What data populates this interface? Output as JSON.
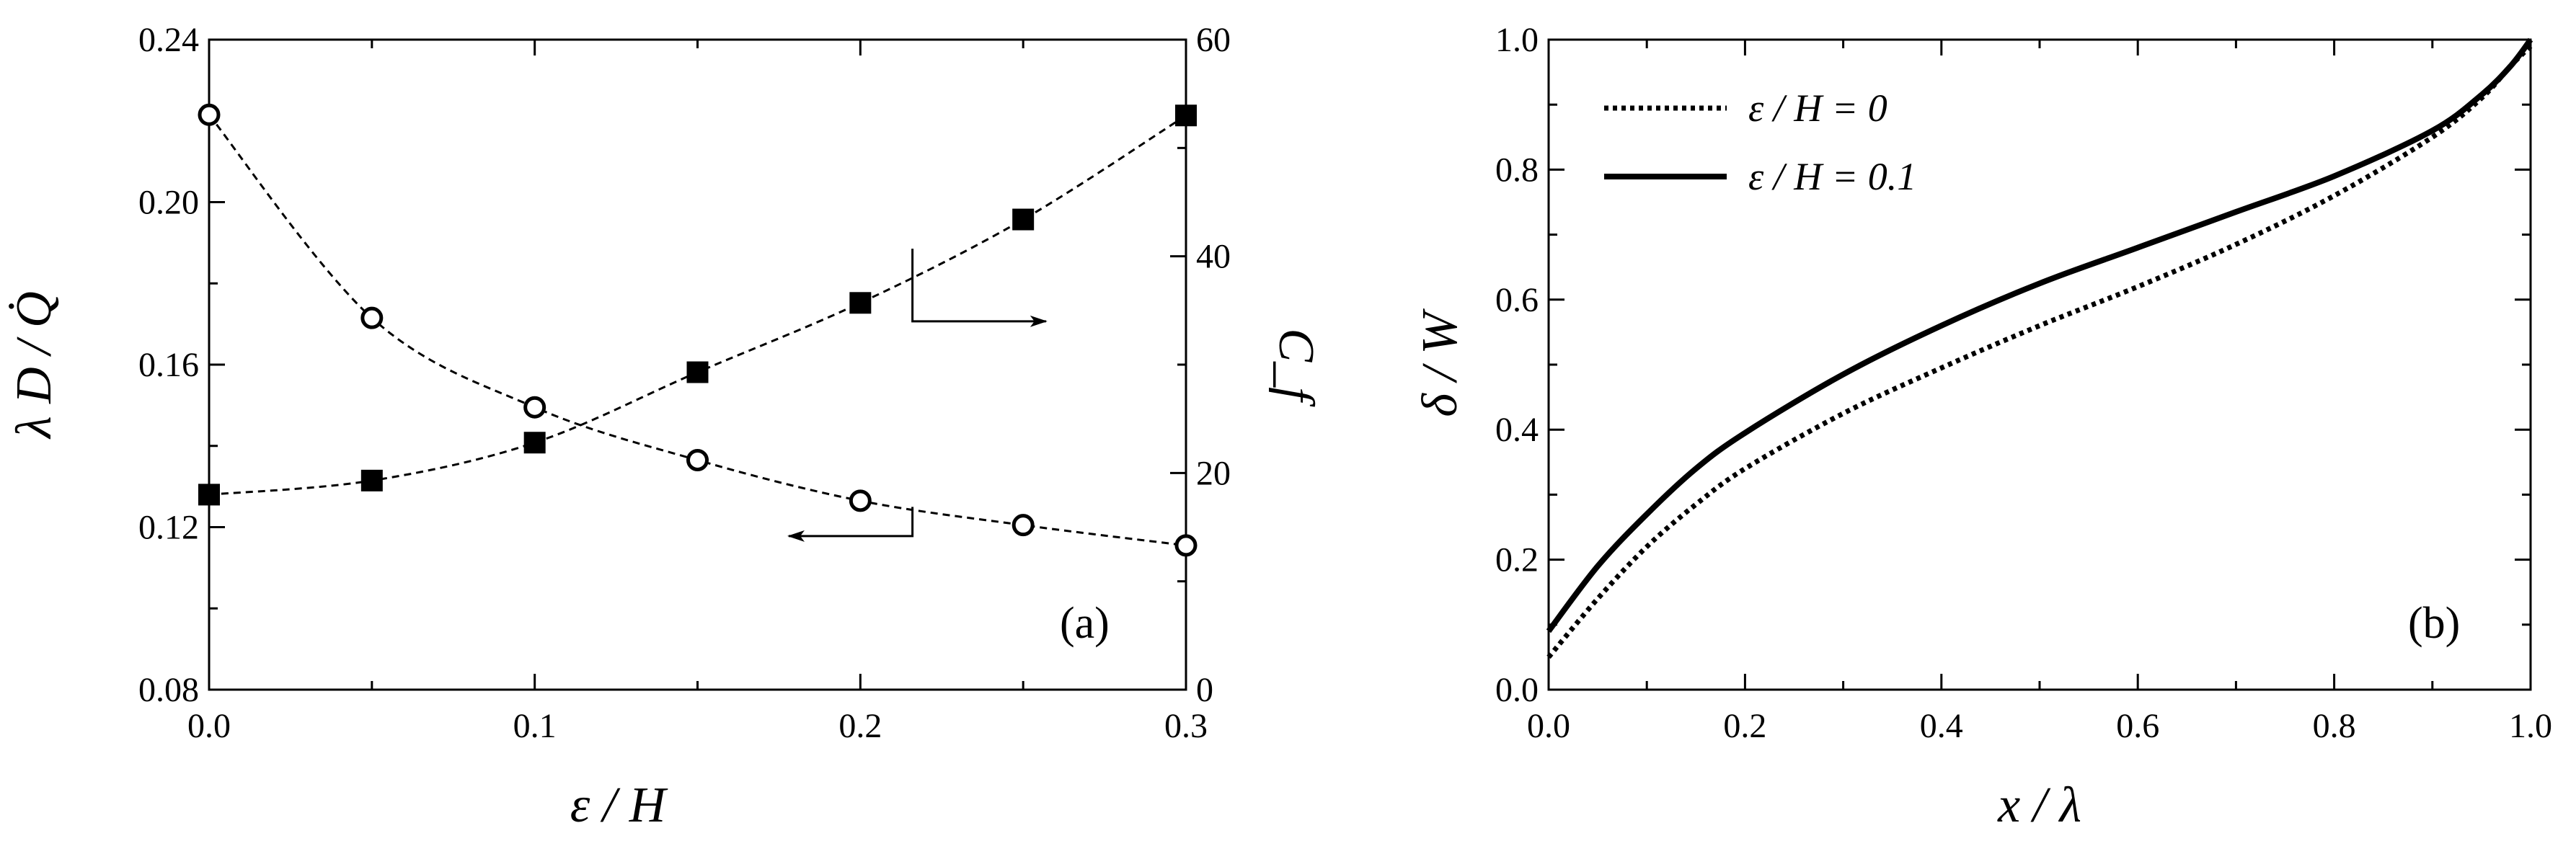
{
  "chart_data": [
    {
      "panel_label": "(a)",
      "type": "scatter",
      "xlabel": "ε / H",
      "ylabel_left": "λ D / Q̇",
      "ylabel_right": "C_f",
      "xlim": [
        0.0,
        0.3
      ],
      "ylim_left": [
        0.08,
        0.24
      ],
      "ylim_right": [
        0,
        60
      ],
      "xticks": [
        "0.0",
        "0.1",
        "0.2",
        "0.3"
      ],
      "yticks_left": [
        "0.08",
        "0.12",
        "0.16",
        "0.20",
        "0.24"
      ],
      "yticks_right": [
        "0",
        "20",
        "40",
        "60"
      ],
      "grid": false,
      "series": [
        {
          "axis": "left",
          "marker": "open-circle",
          "line": "dashed-fit",
          "x": [
            0.0,
            0.05,
            0.1,
            0.15,
            0.2,
            0.25,
            0.3
          ],
          "y": [
            0.2215,
            0.1715,
            0.1495,
            0.1365,
            0.1265,
            0.1205,
            0.1155
          ]
        },
        {
          "axis": "right",
          "marker": "filled-square",
          "line": "dashed-fit",
          "x": [
            0.0,
            0.05,
            0.1,
            0.15,
            0.2,
            0.25,
            0.3
          ],
          "y": [
            18.0,
            19.3,
            22.8,
            29.3,
            35.7,
            43.4,
            53.0
          ]
        }
      ],
      "annotations": [
        {
          "type": "arrow",
          "points_to": "right axis"
        },
        {
          "type": "arrow",
          "points_to": "left axis"
        }
      ]
    },
    {
      "panel_label": "(b)",
      "type": "line",
      "xlabel": "x / λ",
      "ylabel": "δ / W",
      "xlim": [
        0.0,
        1.0
      ],
      "ylim": [
        0.0,
        1.0
      ],
      "xticks": [
        "0.0",
        "0.2",
        "0.4",
        "0.6",
        "0.8",
        "1.0"
      ],
      "yticks": [
        "0.0",
        "0.2",
        "0.4",
        "0.6",
        "0.8",
        "1.0"
      ],
      "grid": false,
      "legend_position": "top-left",
      "series": [
        {
          "name": "ε / H = 0",
          "style": "dotted",
          "x": [
            0.0,
            0.05,
            0.1,
            0.15,
            0.2,
            0.3,
            0.4,
            0.5,
            0.6,
            0.7,
            0.8,
            0.9,
            0.95,
            0.98,
            1.0
          ],
          "y": [
            0.05,
            0.14,
            0.22,
            0.285,
            0.34,
            0.425,
            0.495,
            0.56,
            0.62,
            0.685,
            0.76,
            0.85,
            0.91,
            0.96,
            0.99
          ]
        },
        {
          "name": "ε / H = 0.1",
          "style": "solid",
          "x": [
            0.0,
            0.05,
            0.1,
            0.15,
            0.2,
            0.3,
            0.4,
            0.5,
            0.6,
            0.7,
            0.8,
            0.9,
            0.95,
            0.98,
            1.0
          ],
          "y": [
            0.09,
            0.19,
            0.27,
            0.34,
            0.395,
            0.485,
            0.56,
            0.625,
            0.68,
            0.735,
            0.79,
            0.86,
            0.915,
            0.96,
            1.0
          ]
        }
      ]
    }
  ]
}
